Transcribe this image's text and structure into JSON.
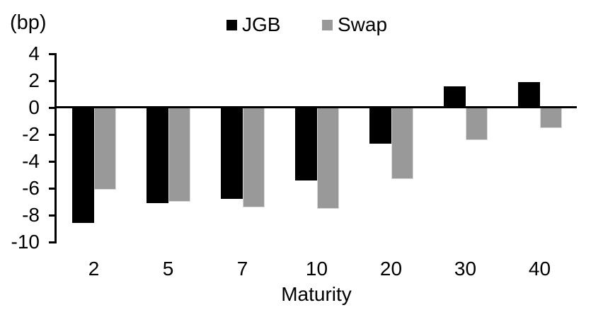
{
  "chart_data": {
    "type": "bar",
    "title": "",
    "unit_label": "(bp)",
    "xlabel": "Maturity",
    "ylabel": "",
    "categories": [
      "2",
      "5",
      "7",
      "10",
      "20",
      "30",
      "40"
    ],
    "series": [
      {
        "name": "JGB",
        "color": "#000000",
        "values": [
          -8.6,
          -7.1,
          -6.8,
          -5.4,
          -2.7,
          1.6,
          1.9
        ]
      },
      {
        "name": "Swap",
        "color": "#999999",
        "values": [
          -6.1,
          -7.0,
          -7.4,
          -7.5,
          -5.3,
          -2.4,
          -1.5
        ]
      }
    ],
    "ylim": [
      -10,
      4
    ],
    "yticks": [
      4,
      2,
      0,
      -2,
      -4,
      -6,
      -8,
      -10
    ],
    "grid": false,
    "legend_position": "top-center",
    "axis_color": "#000000",
    "background_color": "#ffffff"
  }
}
